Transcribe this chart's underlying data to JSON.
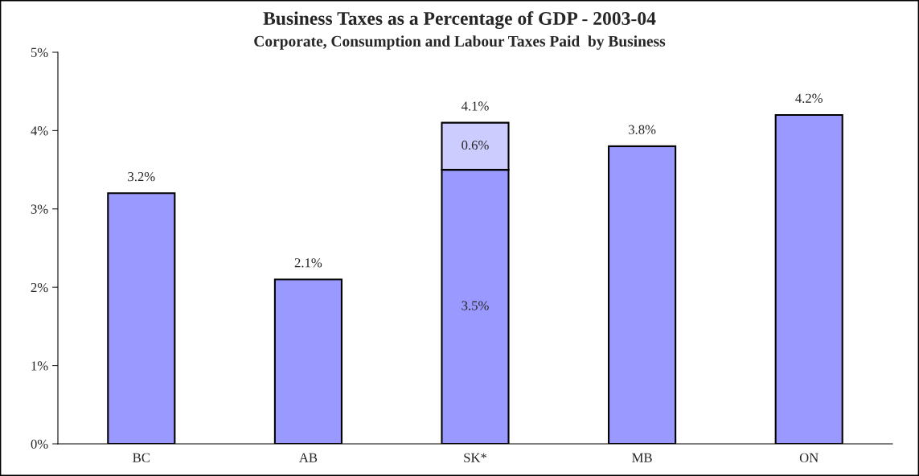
{
  "chart_data": {
    "type": "bar",
    "title": "Business Taxes as a Percentage of GDP - 2003-04",
    "subtitle": "Corporate, Consumption and Labour Taxes Paid  by Business",
    "categories": [
      "BC",
      "AB",
      "SK*",
      "MB",
      "ON"
    ],
    "stacked": true,
    "series": [
      {
        "color": "#9999ff",
        "values": [
          3.2,
          2.1,
          3.5,
          3.8,
          4.2
        ],
        "value_labels": [
          null,
          null,
          "3.5%",
          null,
          null
        ]
      },
      {
        "color": "#ccccff",
        "values": [
          null,
          null,
          0.6,
          null,
          null
        ],
        "value_labels": [
          null,
          null,
          "0.6%",
          null,
          null
        ]
      }
    ],
    "totals": [
      "3.2%",
      "2.1%",
      "4.1%",
      "3.8%",
      "4.2%"
    ],
    "ylim": [
      0,
      5
    ],
    "yticks": [
      {
        "value": 0,
        "label": "0%"
      },
      {
        "value": 1,
        "label": "1%"
      },
      {
        "value": 2,
        "label": "2%"
      },
      {
        "value": 3,
        "label": "3%"
      },
      {
        "value": 4,
        "label": "4%"
      },
      {
        "value": 5,
        "label": "5%"
      }
    ],
    "grid": false,
    "legend": false
  }
}
